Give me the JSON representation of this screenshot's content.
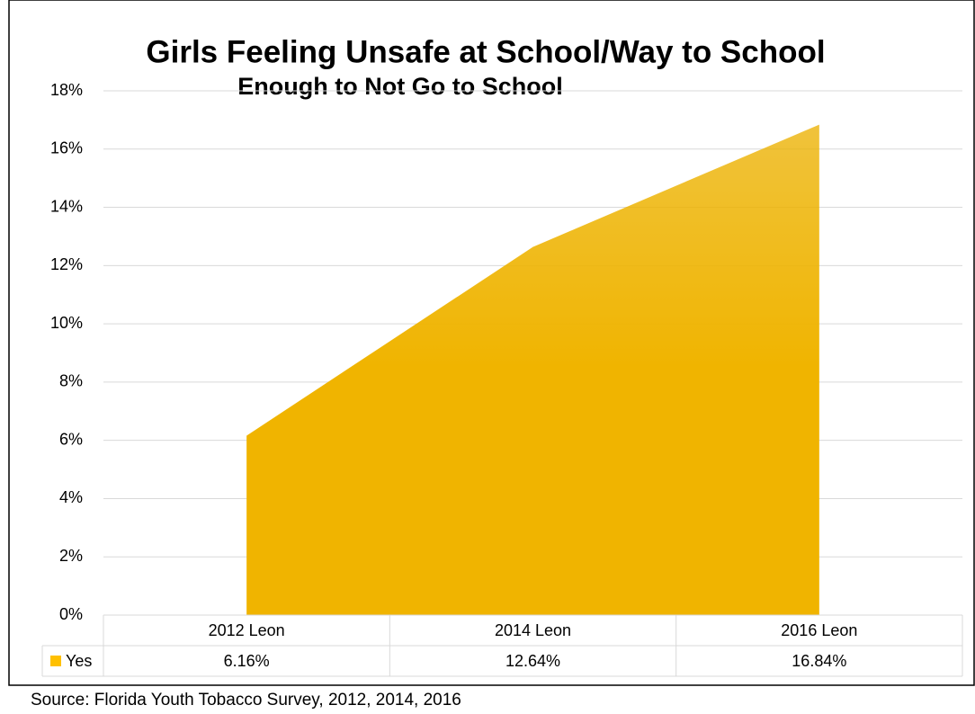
{
  "chart_data": {
    "type": "area",
    "title": "Girls Feeling Unsafe at School/Way to School",
    "subtitle": "Enough to Not Go to School",
    "categories": [
      "2012 Leon",
      "2014 Leon",
      "2016 Leon"
    ],
    "series": [
      {
        "name": "Yes",
        "color": "#ffc000",
        "values": [
          6.16,
          12.64,
          16.84
        ],
        "value_labels": [
          "6.16%",
          "12.64%",
          "16.84%"
        ]
      }
    ],
    "ylim": [
      0,
      18
    ],
    "yticks": [
      {
        "value": 0,
        "label": "0%"
      },
      {
        "value": 2,
        "label": "2%"
      },
      {
        "value": 4,
        "label": "4%"
      },
      {
        "value": 6,
        "label": "6%"
      },
      {
        "value": 8,
        "label": "8%"
      },
      {
        "value": 10,
        "label": "10%"
      },
      {
        "value": 12,
        "label": "12%"
      },
      {
        "value": 14,
        "label": "14%"
      },
      {
        "value": 16,
        "label": "16%"
      },
      {
        "value": 18,
        "label": "18%"
      }
    ],
    "grid": true,
    "source": "Source: Florida Youth Tobacco Survey, 2012, 2014, 2016"
  }
}
